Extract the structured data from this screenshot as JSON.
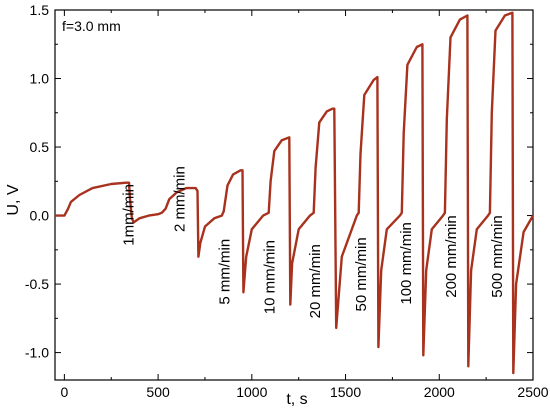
{
  "chart_data": {
    "type": "line",
    "annotation": "f=3.0 mm",
    "xlabel": "t, s",
    "ylabel": "U, V",
    "xlim": [
      -50,
      2500
    ],
    "ylim": [
      -1.2,
      1.5
    ],
    "xticks": [
      0,
      500,
      1000,
      1500,
      2000,
      2500
    ],
    "xtick_labels": [
      "0",
      "500",
      "1000",
      "1500",
      "2000",
      "2500"
    ],
    "yticks": [
      -1.0,
      -0.5,
      0.0,
      0.5,
      1.0,
      1.5
    ],
    "ytick_labels": [
      "-1.0",
      "-0.5",
      "0.0",
      "0.5",
      "1.0",
      "1.5"
    ],
    "grid": false,
    "line_color": "#a8321e",
    "series": [
      {
        "x": [
          -50,
          0,
          20,
          35,
          80,
          150,
          250,
          330,
          345,
          350,
          360,
          370,
          400,
          450,
          500,
          520,
          540,
          560,
          600,
          650,
          700,
          710,
          715,
          725,
          750,
          800,
          840,
          850,
          870,
          900,
          940,
          950,
          955,
          970,
          1000,
          1060,
          1090,
          1100,
          1120,
          1160,
          1200,
          1205,
          1215,
          1250,
          1310,
          1330,
          1340,
          1360,
          1400,
          1430,
          1440,
          1450,
          1480,
          1560,
          1570,
          1580,
          1600,
          1650,
          1670,
          1675,
          1690,
          1720,
          1790,
          1800,
          1810,
          1830,
          1880,
          1910,
          1915,
          1930,
          1960,
          2020,
          2030,
          2040,
          2060,
          2110,
          2150,
          2155,
          2170,
          2200,
          2260,
          2270,
          2280,
          2300,
          2350,
          2390,
          2395,
          2410,
          2450,
          2500
        ],
        "y": [
          0.0,
          0.0,
          0.05,
          0.1,
          0.15,
          0.2,
          0.23,
          0.24,
          0.24,
          0.12,
          -0.02,
          -0.05,
          -0.02,
          0.0,
          0.01,
          0.02,
          0.05,
          0.12,
          0.17,
          0.2,
          0.2,
          0.18,
          -0.3,
          -0.2,
          -0.08,
          -0.02,
          0.0,
          0.03,
          0.22,
          0.3,
          0.33,
          0.33,
          -0.56,
          -0.3,
          -0.1,
          0.0,
          0.02,
          0.25,
          0.47,
          0.55,
          0.57,
          -0.65,
          -0.35,
          -0.1,
          0.0,
          0.02,
          0.35,
          0.68,
          0.76,
          0.78,
          0.78,
          -0.82,
          -0.3,
          0.0,
          0.02,
          0.45,
          0.88,
          0.99,
          1.01,
          -0.96,
          -0.4,
          -0.1,
          0.0,
          0.02,
          0.6,
          1.1,
          1.23,
          1.25,
          -1.02,
          -0.4,
          -0.1,
          0.0,
          0.02,
          0.7,
          1.3,
          1.43,
          1.46,
          -1.1,
          -0.4,
          -0.1,
          0.0,
          0.02,
          0.75,
          1.35,
          1.46,
          1.48,
          -1.15,
          -0.5,
          -0.12,
          0.0
        ]
      }
    ],
    "rate_labels": [
      {
        "text": "1mm/min",
        "x": 370,
        "y": -0.22
      },
      {
        "text": "2 mm/min",
        "x": 640,
        "y": -0.12
      },
      {
        "text": "5 mm/min",
        "x": 880,
        "y": -0.65
      },
      {
        "text": "10 mm/min",
        "x": 1120,
        "y": -0.72
      },
      {
        "text": "20 mm/min",
        "x": 1365,
        "y": -0.75
      },
      {
        "text": "50 mm/min",
        "x": 1610,
        "y": -0.7
      },
      {
        "text": "100 mm/min",
        "x": 1850,
        "y": -0.65
      },
      {
        "text": "200 mm/min",
        "x": 2090,
        "y": -0.6
      },
      {
        "text": "500 mm/min",
        "x": 2335,
        "y": -0.6
      }
    ]
  }
}
